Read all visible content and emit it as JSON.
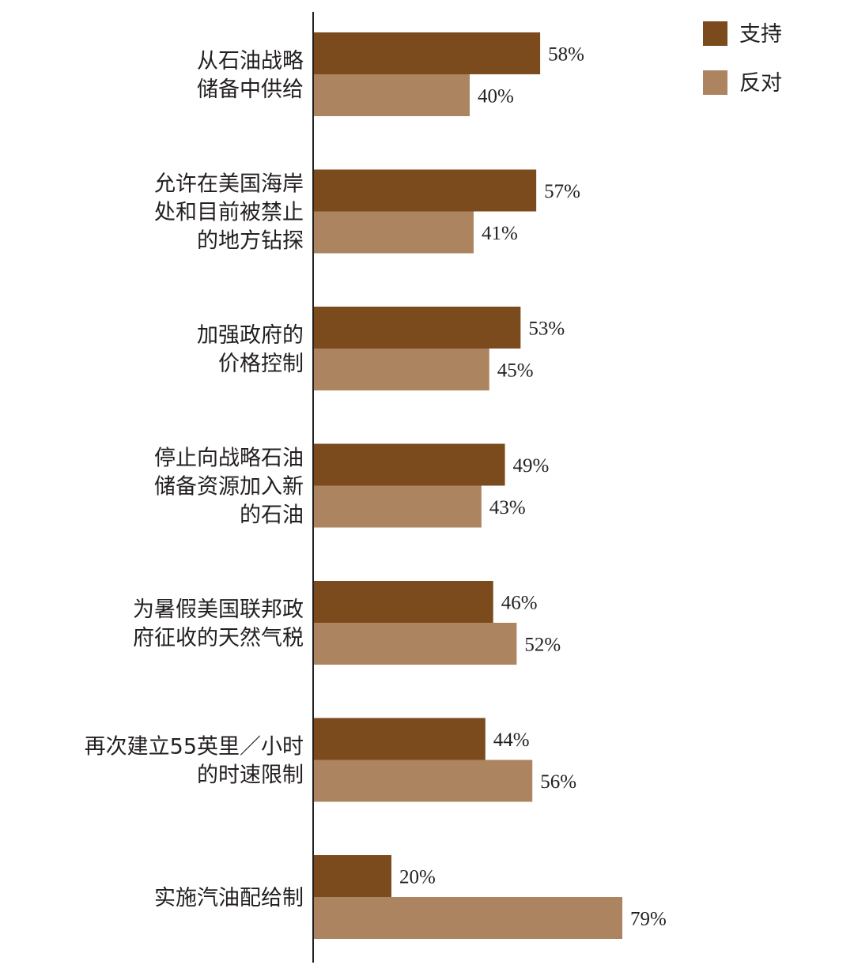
{
  "chart_data": {
    "type": "bar",
    "orientation": "horizontal",
    "title": "",
    "xlabel": "",
    "ylabel": "",
    "xlim": [
      0,
      100
    ],
    "grid": false,
    "legend_position": "top-right",
    "categories": [
      [
        "从石油战略",
        "储备中供给"
      ],
      [
        "允许在美国海岸",
        "处和目前被禁止",
        "的地方钻探"
      ],
      [
        "加强政府的",
        "价格控制"
      ],
      [
        "停止向战略石油",
        "储备资源加入新",
        "的石油"
      ],
      [
        "为暑假美国联邦政",
        "府征收的天然气税"
      ],
      [
        "再次建立55英里／小时",
        "的时速限制"
      ],
      [
        "实施汽油配给制"
      ]
    ],
    "series": [
      {
        "name": "支持",
        "color": "#7b4a1d",
        "values": [
          58,
          57,
          53,
          49,
          46,
          44,
          20
        ]
      },
      {
        "name": "反对",
        "color": "#ad8460",
        "values": [
          40,
          41,
          45,
          43,
          52,
          56,
          79
        ]
      }
    ],
    "value_suffix": "%"
  }
}
